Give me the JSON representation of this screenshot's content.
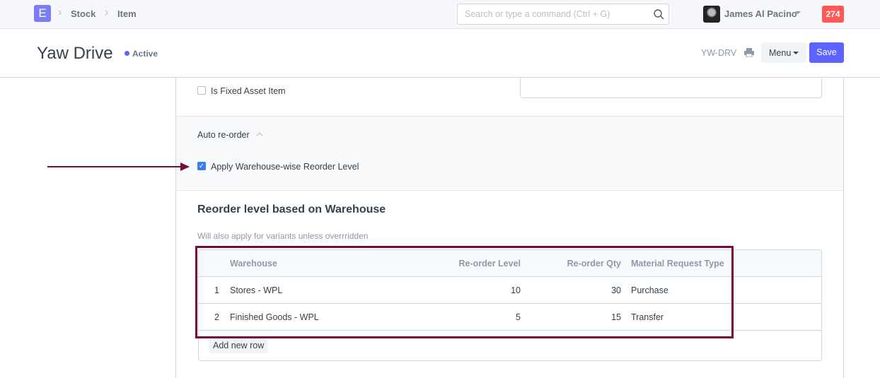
{
  "navbar": {
    "logo": "E",
    "breadcrumbs": [
      "Stock",
      "Item"
    ],
    "search_placeholder": "Search or type a command (Ctrl + G)",
    "user": "James Al Pacino",
    "notifications": "274"
  },
  "header": {
    "title": "Yaw Drive",
    "status": "Active",
    "status_color": "#5e64ff",
    "item_code": "YW-DRV",
    "menu_label": "Menu",
    "save_label": "Save"
  },
  "form": {
    "fixed_asset_label": "Is Fixed Asset Item",
    "fixed_asset_checked": false,
    "auto_reorder": {
      "section_title": "Auto re-order",
      "apply_label": "Apply Warehouse-wise Reorder Level",
      "apply_checked": true
    },
    "reorder": {
      "title": "Reorder level based on Warehouse",
      "description": "Will also apply for variants unless overrridden",
      "columns": [
        "Warehouse",
        "Re-order Level",
        "Re-order Qty",
        "Material Request Type"
      ],
      "rows": [
        {
          "idx": "1",
          "warehouse": "Stores - WPL",
          "level": "10",
          "qty": "30",
          "type": "Purchase"
        },
        {
          "idx": "2",
          "warehouse": "Finished Goods - WPL",
          "level": "5",
          "qty": "15",
          "type": "Transfer"
        }
      ],
      "add_row_label": "Add new row"
    }
  },
  "annotation_color": "#7a0a3c"
}
